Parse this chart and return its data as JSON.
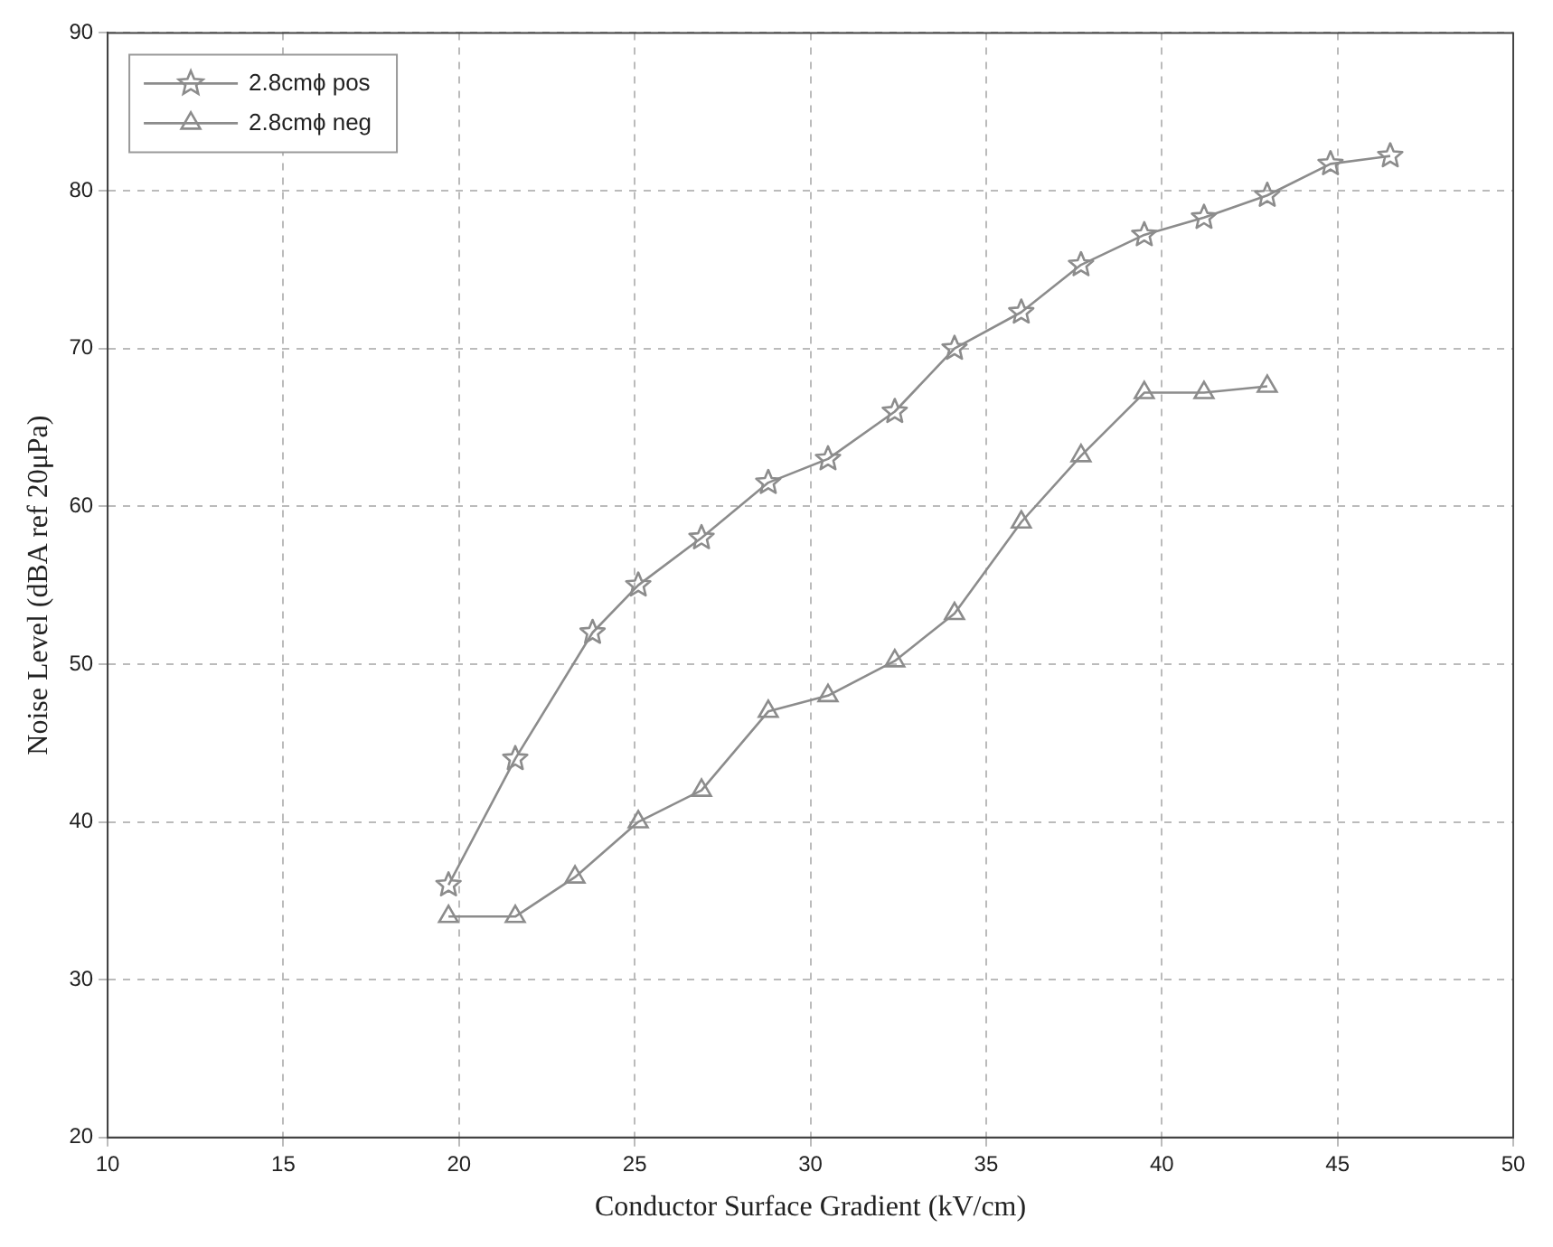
{
  "chart_data": {
    "type": "line",
    "xlabel": "Conductor Surface Gradient (kV/cm)",
    "ylabel": "Noise Level (dBA ref 20μPa)",
    "xlim": [
      10,
      50
    ],
    "xticks": [
      10,
      15,
      20,
      25,
      30,
      35,
      40,
      45,
      50
    ],
    "ylim": [
      20,
      90
    ],
    "yticks": [
      20,
      30,
      40,
      50,
      60,
      70,
      80,
      90
    ],
    "grid": true,
    "legend": "top left",
    "line_style": "solid",
    "series": [
      {
        "name": "2.8cmϕ pos",
        "color": "#8c8c8c",
        "marker": "star",
        "x": [
          19.7,
          21.6,
          23.8,
          25.1,
          26.9,
          28.8,
          30.5,
          32.4,
          34.1,
          36.0,
          37.7,
          39.5,
          41.2,
          43.0,
          44.8,
          46.5
        ],
        "values": [
          36,
          44,
          52,
          55,
          58,
          61.5,
          63,
          66,
          70,
          72.3,
          75.3,
          77.2,
          78.3,
          79.7,
          81.7,
          82.2
        ]
      },
      {
        "name": "2.8cmϕ neg",
        "color": "#8c8c8c",
        "marker": "triangle",
        "x": [
          19.7,
          21.6,
          23.3,
          25.1,
          26.9,
          28.8,
          30.5,
          32.4,
          34.1,
          36.0,
          37.7,
          39.5,
          41.2,
          43.0
        ],
        "values": [
          34,
          34,
          36.5,
          40,
          42,
          47,
          48,
          50.2,
          53.2,
          59,
          63.2,
          67.2,
          67.2,
          67.6
        ]
      }
    ]
  }
}
